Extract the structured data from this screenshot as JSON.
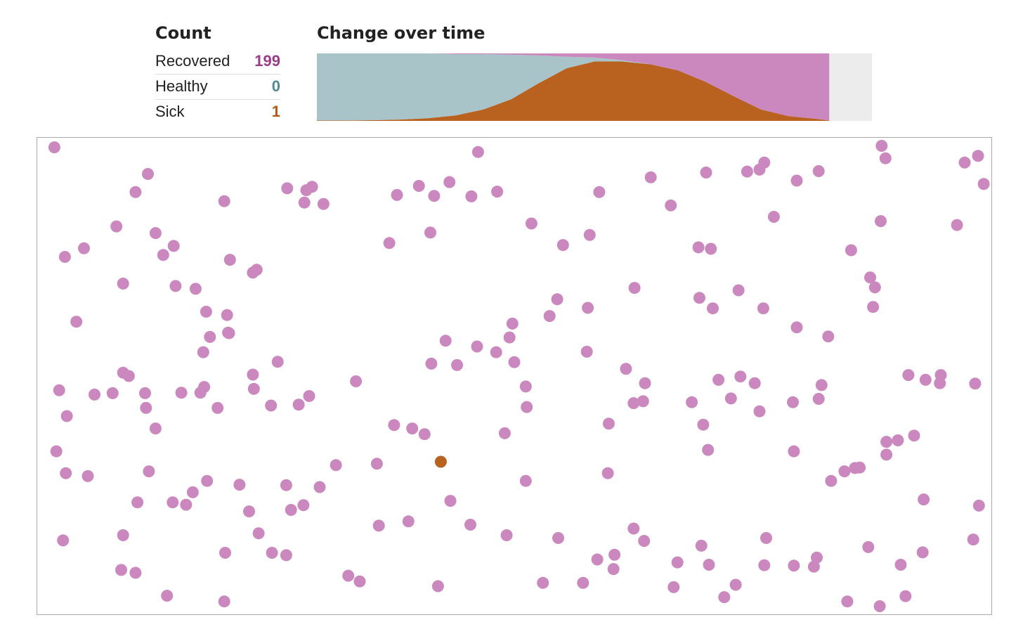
{
  "colors": {
    "recovered": "#cb88bf",
    "healthy": "#a9c4c8",
    "sick": "#b9611e",
    "recovered_text": "#993d88",
    "healthy_text": "#4e8a90",
    "sick_text": "#b05a14",
    "remaining": "#ececec"
  },
  "count": {
    "title": "Count",
    "rows": [
      {
        "label": "Recovered",
        "value": "199",
        "status": "recovered"
      },
      {
        "label": "Healthy",
        "value": "0",
        "status": "healthy"
      },
      {
        "label": "Sick",
        "value": "1",
        "status": "sick"
      }
    ]
  },
  "chart": {
    "title": "Change over time"
  },
  "chart_data": {
    "type": "area",
    "stacking": "stacked-100-percent",
    "title": "Change over time",
    "xlabel": "",
    "ylabel": "",
    "x_range": [
      0,
      1
    ],
    "elapsed_fraction": 0.923,
    "x": [
      0,
      0.05,
      0.1,
      0.15,
      0.2,
      0.25,
      0.3,
      0.35,
      0.4,
      0.45,
      0.5,
      0.55,
      0.6,
      0.65,
      0.7,
      0.75,
      0.8,
      0.85,
      0.9,
      0.923
    ],
    "series": [
      {
        "name": "Sick",
        "values": [
          0.5,
          0.5,
          1,
          2,
          4,
          8,
          17,
          32,
          56,
          78,
          88,
          88,
          84,
          75,
          58,
          37,
          17,
          7,
          3,
          0.5
        ]
      },
      {
        "name": "Healthy",
        "values": [
          99.5,
          99.5,
          99,
          98,
          96,
          91,
          82,
          66,
          41,
          17,
          6,
          2,
          0,
          0,
          0,
          0,
          0,
          0,
          0,
          0
        ]
      },
      {
        "name": "Recovered",
        "values": [
          0,
          0,
          0,
          0,
          0,
          1,
          1,
          2,
          3,
          5,
          6,
          10,
          16,
          25,
          42,
          63,
          83,
          93,
          97,
          99.5
        ]
      }
    ]
  },
  "simulation": {
    "sick_dot": [
      0.423,
      0.68
    ],
    "dots": [
      [
        0.018,
        0.02
      ],
      [
        0.116,
        0.076
      ],
      [
        0.103,
        0.114
      ],
      [
        0.196,
        0.133
      ],
      [
        0.083,
        0.186
      ],
      [
        0.049,
        0.232
      ],
      [
        0.029,
        0.25
      ],
      [
        0.124,
        0.2
      ],
      [
        0.132,
        0.246
      ],
      [
        0.143,
        0.227
      ],
      [
        0.145,
        0.311
      ],
      [
        0.166,
        0.317
      ],
      [
        0.177,
        0.365
      ],
      [
        0.199,
        0.372
      ],
      [
        0.09,
        0.306
      ],
      [
        0.041,
        0.386
      ],
      [
        0.181,
        0.418
      ],
      [
        0.201,
        0.41
      ],
      [
        0.174,
        0.45
      ],
      [
        0.23,
        0.277
      ],
      [
        0.202,
        0.256
      ],
      [
        0.282,
        0.11
      ],
      [
        0.262,
        0.106
      ],
      [
        0.28,
        0.136
      ],
      [
        0.3,
        0.139
      ],
      [
        0.288,
        0.103
      ],
      [
        0.432,
        0.093
      ],
      [
        0.455,
        0.123
      ],
      [
        0.416,
        0.122
      ],
      [
        0.377,
        0.12
      ],
      [
        0.4,
        0.101
      ],
      [
        0.369,
        0.221
      ],
      [
        0.412,
        0.199
      ],
      [
        0.462,
        0.03
      ],
      [
        0.482,
        0.113
      ],
      [
        0.518,
        0.18
      ],
      [
        0.551,
        0.225
      ],
      [
        0.579,
        0.204
      ],
      [
        0.589,
        0.114
      ],
      [
        0.643,
        0.083
      ],
      [
        0.664,
        0.142
      ],
      [
        0.693,
        0.23
      ],
      [
        0.701,
        0.073
      ],
      [
        0.744,
        0.071
      ],
      [
        0.757,
        0.067
      ],
      [
        0.762,
        0.052
      ],
      [
        0.796,
        0.09
      ],
      [
        0.819,
        0.07
      ],
      [
        0.772,
        0.166
      ],
      [
        0.885,
        0.017
      ],
      [
        0.889,
        0.043
      ],
      [
        0.972,
        0.052
      ],
      [
        0.986,
        0.038
      ],
      [
        0.992,
        0.097
      ],
      [
        0.964,
        0.183
      ],
      [
        0.884,
        0.175
      ],
      [
        0.853,
        0.236
      ],
      [
        0.706,
        0.233
      ],
      [
        0.626,
        0.315
      ],
      [
        0.694,
        0.336
      ],
      [
        0.708,
        0.358
      ],
      [
        0.735,
        0.32
      ],
      [
        0.761,
        0.358
      ],
      [
        0.796,
        0.398
      ],
      [
        0.829,
        0.417
      ],
      [
        0.873,
        0.293
      ],
      [
        0.878,
        0.314
      ],
      [
        0.876,
        0.355
      ],
      [
        0.913,
        0.498
      ],
      [
        0.947,
        0.498
      ],
      [
        0.023,
        0.53
      ],
      [
        0.031,
        0.584
      ],
      [
        0.06,
        0.539
      ],
      [
        0.079,
        0.536
      ],
      [
        0.09,
        0.493
      ],
      [
        0.096,
        0.5
      ],
      [
        0.113,
        0.536
      ],
      [
        0.114,
        0.567
      ],
      [
        0.124,
        0.61
      ],
      [
        0.171,
        0.535
      ],
      [
        0.151,
        0.535
      ],
      [
        0.189,
        0.567
      ],
      [
        0.175,
        0.523
      ],
      [
        0.2,
        0.409
      ],
      [
        0.226,
        0.283
      ],
      [
        0.252,
        0.47
      ],
      [
        0.226,
        0.497
      ],
      [
        0.227,
        0.527
      ],
      [
        0.245,
        0.562
      ],
      [
        0.274,
        0.56
      ],
      [
        0.285,
        0.542
      ],
      [
        0.406,
        0.622
      ],
      [
        0.374,
        0.603
      ],
      [
        0.393,
        0.61
      ],
      [
        0.334,
        0.511
      ],
      [
        0.356,
        0.684
      ],
      [
        0.313,
        0.687
      ],
      [
        0.261,
        0.729
      ],
      [
        0.279,
        0.771
      ],
      [
        0.222,
        0.784
      ],
      [
        0.246,
        0.871
      ],
      [
        0.261,
        0.876
      ],
      [
        0.326,
        0.919
      ],
      [
        0.338,
        0.931
      ],
      [
        0.42,
        0.941
      ],
      [
        0.389,
        0.805
      ],
      [
        0.358,
        0.814
      ],
      [
        0.296,
        0.733
      ],
      [
        0.266,
        0.781
      ],
      [
        0.232,
        0.83
      ],
      [
        0.197,
        0.871
      ],
      [
        0.163,
        0.744
      ],
      [
        0.142,
        0.765
      ],
      [
        0.117,
        0.7
      ],
      [
        0.105,
        0.765
      ],
      [
        0.09,
        0.834
      ],
      [
        0.103,
        0.913
      ],
      [
        0.088,
        0.907
      ],
      [
        0.136,
        0.961
      ],
      [
        0.196,
        0.973
      ],
      [
        0.027,
        0.845
      ],
      [
        0.03,
        0.704
      ],
      [
        0.02,
        0.658
      ],
      [
        0.053,
        0.71
      ],
      [
        0.156,
        0.77
      ],
      [
        0.178,
        0.72
      ],
      [
        0.212,
        0.728
      ],
      [
        0.433,
        0.762
      ],
      [
        0.454,
        0.812
      ],
      [
        0.492,
        0.834
      ],
      [
        0.512,
        0.72
      ],
      [
        0.49,
        0.62
      ],
      [
        0.513,
        0.565
      ],
      [
        0.512,
        0.522
      ],
      [
        0.5,
        0.471
      ],
      [
        0.481,
        0.45
      ],
      [
        0.461,
        0.438
      ],
      [
        0.428,
        0.426
      ],
      [
        0.44,
        0.477
      ],
      [
        0.413,
        0.474
      ],
      [
        0.498,
        0.39
      ],
      [
        0.495,
        0.419
      ],
      [
        0.537,
        0.374
      ],
      [
        0.545,
        0.339
      ],
      [
        0.577,
        0.357
      ],
      [
        0.576,
        0.449
      ],
      [
        0.599,
        0.6
      ],
      [
        0.625,
        0.557
      ],
      [
        0.598,
        0.704
      ],
      [
        0.604,
        0.905
      ],
      [
        0.636,
        0.846
      ],
      [
        0.605,
        0.875
      ],
      [
        0.587,
        0.885
      ],
      [
        0.53,
        0.934
      ],
      [
        0.546,
        0.84
      ],
      [
        0.572,
        0.934
      ],
      [
        0.625,
        0.82
      ],
      [
        0.635,
        0.553
      ],
      [
        0.637,
        0.515
      ],
      [
        0.617,
        0.485
      ],
      [
        0.714,
        0.508
      ],
      [
        0.698,
        0.602
      ],
      [
        0.686,
        0.555
      ],
      [
        0.727,
        0.547
      ],
      [
        0.737,
        0.501
      ],
      [
        0.752,
        0.515
      ],
      [
        0.757,
        0.574
      ],
      [
        0.792,
        0.555
      ],
      [
        0.822,
        0.519
      ],
      [
        0.819,
        0.548
      ],
      [
        0.793,
        0.658
      ],
      [
        0.846,
        0.7
      ],
      [
        0.832,
        0.72
      ],
      [
        0.857,
        0.693
      ],
      [
        0.862,
        0.692
      ],
      [
        0.89,
        0.638
      ],
      [
        0.902,
        0.635
      ],
      [
        0.919,
        0.625
      ],
      [
        0.89,
        0.665
      ],
      [
        0.931,
        0.508
      ],
      [
        0.946,
        0.515
      ],
      [
        0.983,
        0.516
      ],
      [
        0.987,
        0.772
      ],
      [
        0.981,
        0.843
      ],
      [
        0.929,
        0.759
      ],
      [
        0.928,
        0.87
      ],
      [
        0.905,
        0.896
      ],
      [
        0.91,
        0.962
      ],
      [
        0.871,
        0.859
      ],
      [
        0.817,
        0.881
      ],
      [
        0.764,
        0.84
      ],
      [
        0.762,
        0.897
      ],
      [
        0.732,
        0.938
      ],
      [
        0.72,
        0.964
      ],
      [
        0.667,
        0.943
      ],
      [
        0.671,
        0.891
      ],
      [
        0.704,
        0.896
      ],
      [
        0.696,
        0.856
      ],
      [
        0.814,
        0.9
      ],
      [
        0.849,
        0.973
      ],
      [
        0.883,
        0.983
      ],
      [
        0.793,
        0.898
      ],
      [
        0.703,
        0.655
      ]
    ]
  }
}
